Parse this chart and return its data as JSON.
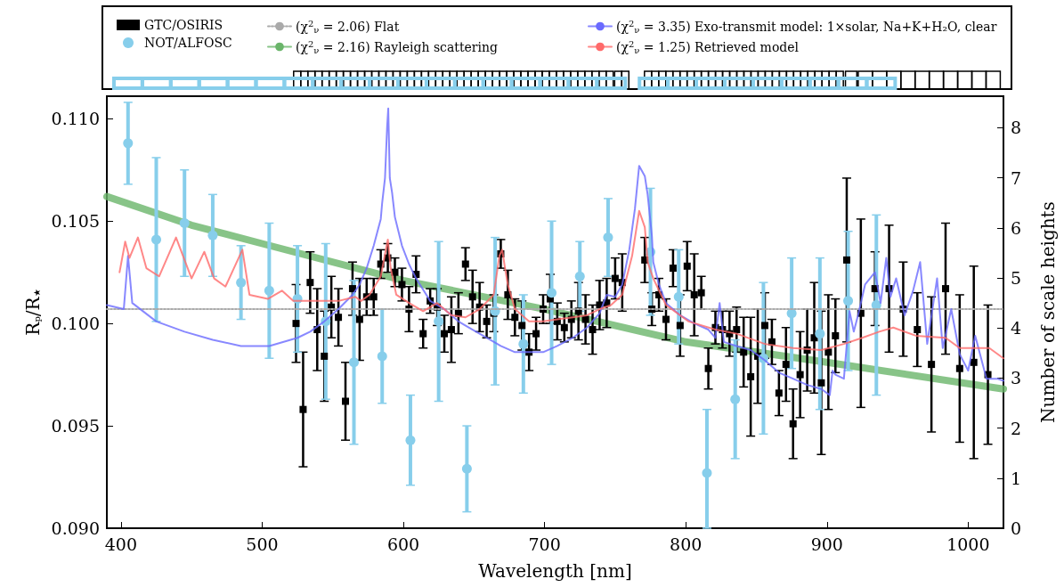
{
  "chart_data": {
    "type": "scatter",
    "xlabel": "Wavelength [nm]",
    "ylabel": "R$_{p}$/R$_{★}$",
    "y2label": "Number of scale heights",
    "xlim": [
      390,
      1025
    ],
    "xticks": [
      400,
      500,
      600,
      700,
      800,
      900,
      1000
    ],
    "ylim": [
      0.09,
      0.1111
    ],
    "yticks": [
      {
        "value": 0.09,
        "label": "0.090"
      },
      {
        "value": 0.095,
        "label": "0.095"
      },
      {
        "value": 0.1,
        "label": "0.100"
      },
      {
        "value": 0.105,
        "label": "0.105"
      },
      {
        "value": 0.11,
        "label": "0.110"
      }
    ],
    "y2lim": [
      0,
      8.63
    ],
    "y2ticks": [
      0,
      1,
      2,
      3,
      4,
      5,
      6,
      7,
      8
    ],
    "legend": "top",
    "grid": false,
    "series": [
      {
        "name": "GTC/OSIRIS",
        "type": "scatter",
        "marker": "square",
        "color": "#000000",
        "x": [
          524,
          529,
          534,
          539,
          544,
          549,
          554,
          559,
          564,
          569,
          574,
          579,
          584,
          589,
          594,
          599,
          604,
          609,
          614,
          619,
          624,
          629,
          634,
          639,
          644,
          649,
          654,
          659,
          664,
          669,
          674,
          679,
          684,
          689,
          694,
          699,
          704,
          709,
          714,
          719,
          724,
          729,
          734,
          739,
          744,
          750,
          755,
          771,
          776,
          781,
          786,
          791,
          796,
          801,
          806,
          811,
          816,
          821,
          826,
          831,
          836,
          841,
          846,
          851,
          856,
          861,
          866,
          871,
          876,
          881,
          886,
          891,
          896,
          901,
          906,
          914,
          924,
          934,
          944,
          954,
          964,
          974,
          984,
          994,
          1004,
          1014
        ],
        "values": [
          0.1,
          0.0958,
          0.102,
          0.0997,
          0.0984,
          0.1008,
          0.1003,
          0.0962,
          0.1017,
          0.1002,
          0.1013,
          0.1013,
          0.1029,
          0.1032,
          0.1025,
          0.1019,
          0.1007,
          0.1024,
          0.0995,
          0.1011,
          0.1008,
          0.0995,
          0.0997,
          0.1005,
          0.1029,
          0.1013,
          0.1008,
          0.1001,
          0.1005,
          0.1034,
          0.1014,
          0.1003,
          0.0999,
          0.0986,
          0.0995,
          0.1007,
          0.1012,
          0.1001,
          0.0998,
          0.1002,
          0.1006,
          0.1002,
          0.0997,
          0.1009,
          0.101,
          0.1022,
          0.102,
          0.1031,
          0.1007,
          0.1014,
          0.1002,
          0.1027,
          0.0999,
          0.1028,
          0.1014,
          0.1015,
          0.0978,
          0.0998,
          0.0997,
          0.0995,
          0.0997,
          0.0986,
          0.0974,
          0.0984,
          0.0999,
          0.0991,
          0.0966,
          0.098,
          0.0951,
          0.0975,
          0.0987,
          0.0993,
          0.0971,
          0.0986,
          0.0994,
          0.1031,
          0.1005,
          0.1017,
          0.1017,
          0.1007,
          0.0997,
          0.098,
          0.1017,
          0.0978,
          0.0981,
          0.0975
        ],
        "errors": [
          0.0019,
          0.0028,
          0.0015,
          0.002,
          0.0022,
          0.0015,
          0.0014,
          0.0019,
          0.0013,
          0.002,
          0.0009,
          0.0009,
          0.0007,
          0.0007,
          0.0007,
          0.0008,
          0.0011,
          0.0009,
          0.0007,
          0.0006,
          0.0009,
          0.0009,
          0.0016,
          0.001,
          0.0008,
          0.0013,
          0.0012,
          0.0008,
          0.0009,
          0.0007,
          0.0012,
          0.0009,
          0.0012,
          0.0009,
          0.0008,
          0.0007,
          0.0012,
          0.0009,
          0.0007,
          0.0009,
          0.0014,
          0.0012,
          0.0012,
          0.0012,
          0.0012,
          0.001,
          0.0014,
          0.0011,
          0.0008,
          0.0008,
          0.001,
          0.0009,
          0.0015,
          0.0012,
          0.002,
          0.0008,
          0.001,
          0.0008,
          0.0009,
          0.0011,
          0.0011,
          0.0017,
          0.0029,
          0.0023,
          0.0016,
          0.0011,
          0.0011,
          0.0018,
          0.0017,
          0.0021,
          0.002,
          0.0027,
          0.0035,
          0.0028,
          0.0018,
          0.004,
          0.0046,
          0.0018,
          0.0031,
          0.0023,
          0.0018,
          0.0033,
          0.0032,
          0.0036,
          0.0047,
          0.0034
        ]
      },
      {
        "name": "NOT/ALFOSC",
        "type": "scatter",
        "marker": "circle",
        "color": "#87ceeb",
        "x": [
          405,
          425,
          445,
          465,
          485,
          505,
          525,
          545,
          565,
          585,
          605,
          625,
          645,
          665,
          685,
          705,
          725,
          745,
          775,
          795,
          815,
          835,
          855,
          875,
          895,
          915,
          935
        ],
        "values": [
          0.1088,
          0.1041,
          0.1049,
          0.1043,
          0.102,
          0.1016,
          0.1012,
          0.1001,
          0.0981,
          0.0984,
          0.0943,
          0.1001,
          0.0929,
          0.1006,
          0.099,
          0.1015,
          0.1023,
          0.1042,
          0.1035,
          0.1013,
          0.0927,
          0.0963,
          0.0983,
          0.1005,
          0.0995,
          0.1011,
          0.1009
        ],
        "errors": [
          0.002,
          0.004,
          0.0026,
          0.002,
          0.0018,
          0.0033,
          0.0026,
          0.0038,
          0.004,
          0.0023,
          0.0022,
          0.0039,
          0.0021,
          0.0036,
          0.0024,
          0.0035,
          0.0017,
          0.0019,
          0.0031,
          0.0023,
          [
            0.09,
            0.0958
          ],
          0.0029,
          0.0037,
          0.0027,
          0.0037,
          0.0034,
          0.0044
        ]
      },
      {
        "name": "(χ$^{2}$$_{ν}$ = 2.06) Flat",
        "type": "line",
        "line_style": "dotted",
        "color": "#aaaaaa",
        "x": [
          390,
          1025
        ],
        "values": [
          0.1007,
          0.1007
        ]
      },
      {
        "name": "(χ$^{2}$$_{ν}$ = 2.16) Rayleigh scattering",
        "type": "line",
        "line_style": "solid",
        "color": "#6ab56a",
        "x": [
          390,
          450,
          500,
          600,
          700,
          800,
          900,
          1025
        ],
        "values": [
          0.1062,
          0.1048,
          0.1039,
          0.1021,
          0.1007,
          0.0991,
          0.0981,
          0.0968
        ]
      },
      {
        "name": "(χ$^{2}$$_{ν}$ = 3.35) Exo-transmit model: 1×solar, Na+K+H₂O, clear",
        "type": "line",
        "line_style": "solid",
        "color": "#6a6aff",
        "x": [
          390,
          402,
          405,
          408,
          425,
          445,
          465,
          485,
          505,
          525,
          534,
          544,
          554,
          564,
          569,
          574,
          579,
          584,
          585,
          587,
          588.5,
          589.3,
          590.4,
          592,
          594,
          599,
          604,
          609,
          619,
          629,
          639,
          649,
          659,
          669,
          679,
          689,
          699,
          709,
          720,
          730,
          739,
          744,
          750,
          755,
          760,
          764,
          767,
          771,
          773,
          776,
          777,
          781,
          786,
          796,
          806,
          816,
          821,
          824,
          827,
          836,
          846,
          856,
          866,
          876,
          886,
          896,
          902,
          904,
          906,
          912,
          916,
          919,
          922,
          927,
          934,
          938,
          942,
          945,
          949,
          955,
          961,
          966,
          971,
          978,
          982,
          988,
          994,
          1000,
          1005,
          1013,
          1021,
          1025
        ],
        "values": [
          0.1009,
          0.1007,
          0.1033,
          0.101,
          0.1001,
          0.0996,
          0.0992,
          0.0989,
          0.0989,
          0.0993,
          0.0996,
          0.1001,
          0.1007,
          0.1014,
          0.1019,
          0.1027,
          0.1038,
          0.1051,
          0.1059,
          0.1071,
          0.1096,
          0.1105,
          0.1071,
          0.1064,
          0.1052,
          0.1038,
          0.1029,
          0.1022,
          0.1011,
          0.1007,
          0.1001,
          0.0997,
          0.0993,
          0.0989,
          0.0986,
          0.0986,
          0.0986,
          0.0989,
          0.0993,
          0.0998,
          0.1005,
          0.1014,
          0.1013,
          0.1019,
          0.1036,
          0.1056,
          0.1077,
          0.1072,
          0.1063,
          0.1043,
          0.103,
          0.1019,
          0.101,
          0.1004,
          0.1,
          0.0997,
          0.0993,
          0.101,
          0.0991,
          0.0989,
          0.0987,
          0.0982,
          0.0976,
          0.0973,
          0.097,
          0.0968,
          0.0965,
          0.0977,
          0.0975,
          0.0973,
          0.1006,
          0.0996,
          0.1004,
          0.1019,
          0.1025,
          0.101,
          0.1032,
          0.1013,
          0.1022,
          0.1004,
          0.1016,
          0.103,
          0.099,
          0.1022,
          0.0988,
          0.1007,
          0.0985,
          0.0977,
          0.0994,
          0.0973,
          0.0973,
          0.0972
        ]
      },
      {
        "name": "(χ$^{2}$$_{ν}$ = 1.25) Retrieved model",
        "type": "line",
        "line_style": "solid",
        "color": "#ff6a6a",
        "x": [
          399,
          403,
          406,
          412,
          418,
          427,
          439,
          450,
          459,
          466,
          474,
          486,
          491,
          504,
          514,
          522,
          537,
          554,
          566,
          570,
          576,
          584,
          589,
          591,
          595,
          604,
          614,
          624,
          634,
          644,
          654,
          664,
          668,
          670,
          672,
          674,
          679,
          689,
          699,
          709,
          720,
          730,
          739,
          747,
          755,
          762,
          767,
          771,
          773,
          777,
          786,
          802,
          821,
          836,
          856,
          876,
          896,
          912,
          925,
          937,
          947,
          963,
          984,
          994,
          1015,
          1025
        ],
        "values": [
          0.1025,
          0.104,
          0.1032,
          0.1042,
          0.1027,
          0.1023,
          0.1042,
          0.1022,
          0.1035,
          0.1022,
          0.1018,
          0.1036,
          0.1014,
          0.1012,
          0.1016,
          0.1011,
          0.1011,
          0.1011,
          0.1013,
          0.1011,
          0.1014,
          0.1023,
          0.1041,
          0.1027,
          0.1014,
          0.101,
          0.1006,
          0.101,
          0.1004,
          0.1003,
          0.1007,
          0.1014,
          0.1033,
          0.1036,
          0.1027,
          0.1019,
          0.1007,
          0.1001,
          0.1001,
          0.1002,
          0.1003,
          0.1004,
          0.1007,
          0.1009,
          0.1014,
          0.1033,
          0.1055,
          0.1047,
          0.103,
          0.1022,
          0.1009,
          0.1001,
          0.0997,
          0.0995,
          0.099,
          0.0988,
          0.0987,
          0.099,
          0.0993,
          0.0996,
          0.0998,
          0.0994,
          0.0993,
          0.0988,
          0.0988,
          0.0983
        ]
      }
    ]
  }
}
